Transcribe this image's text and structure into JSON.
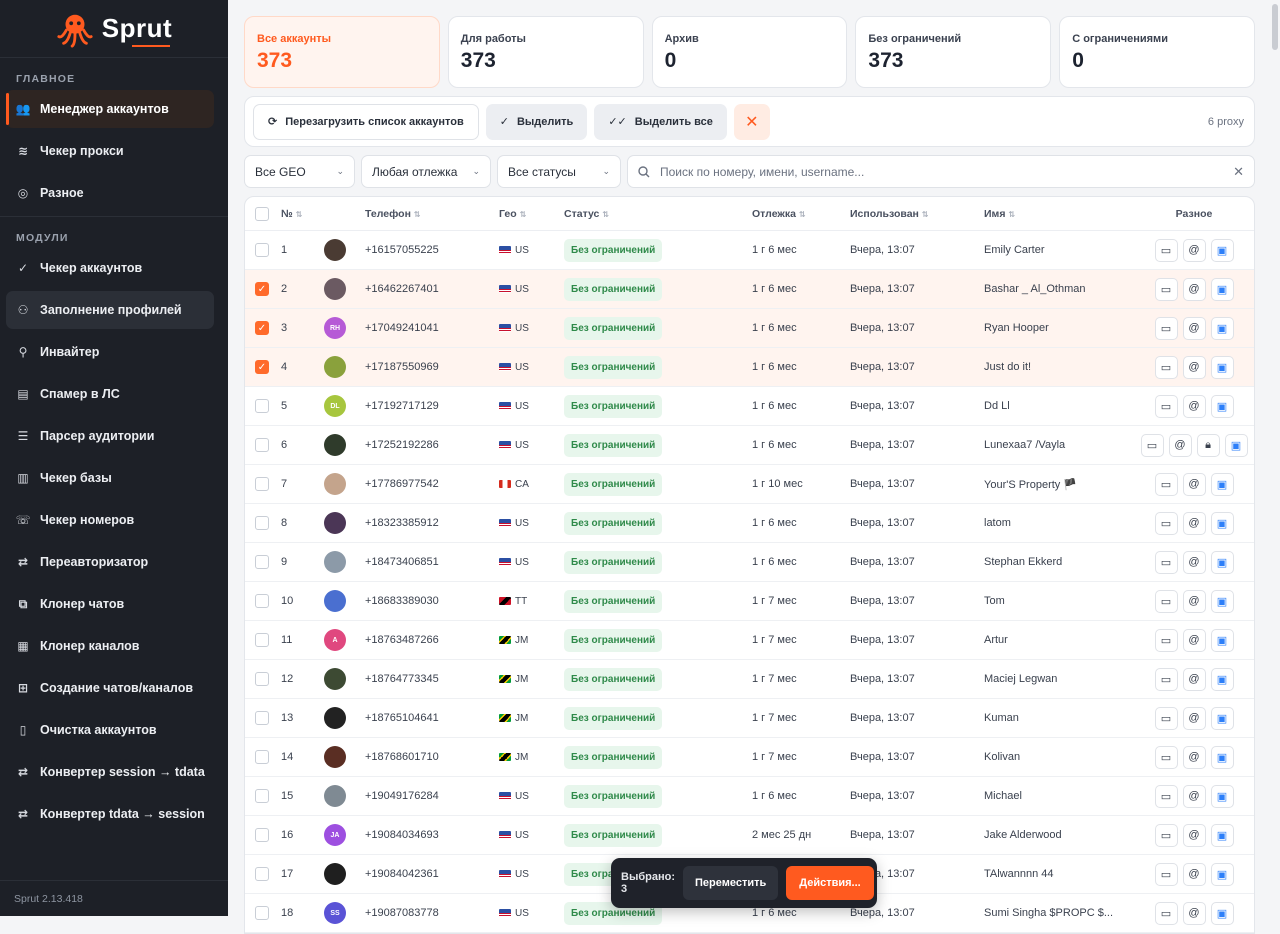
{
  "brand": {
    "name": "Sprut",
    "version": "Sprut 2.13.418",
    "accent": "#ff5a1f"
  },
  "sidebar": {
    "section_main": "ГЛАВНОЕ",
    "main_items": [
      {
        "label": "Менеджер аккаунтов",
        "icon": "users-icon"
      },
      {
        "label": "Чекер прокси",
        "icon": "wifi-icon"
      },
      {
        "label": "Разное",
        "icon": "disc-icon"
      }
    ],
    "section_modules": "МОДУЛИ",
    "module_items": [
      {
        "label": "Чекер аккаунтов",
        "icon": "check-line-icon"
      },
      {
        "label": "Заполнение профилей",
        "icon": "user-edit-icon"
      },
      {
        "label": "Инвайтер",
        "icon": "user-plus-icon"
      },
      {
        "label": "Спамер в ЛС",
        "icon": "message-icon"
      },
      {
        "label": "Парсер аудитории",
        "icon": "filter-icon"
      },
      {
        "label": "Чекер базы",
        "icon": "doc-check-icon"
      },
      {
        "label": "Чекер номеров",
        "icon": "phone-icon"
      },
      {
        "label": "Переавторизатор",
        "icon": "refresh-icon"
      },
      {
        "label": "Клонер чатов",
        "icon": "copy-icon"
      },
      {
        "label": "Клонер каналов",
        "icon": "channel-icon"
      },
      {
        "label": "Создание чатов/каналов",
        "icon": "chat-plus-icon"
      },
      {
        "label": "Очистка аккаунтов",
        "icon": "trash-icon"
      },
      {
        "label": "Конвертер session → tdata",
        "icon": "swap-icon"
      },
      {
        "label": "Конвертер tdata → session",
        "icon": "swap-icon"
      }
    ]
  },
  "stats": [
    {
      "label": "Все аккаунты",
      "value": "373"
    },
    {
      "label": "Для работы",
      "value": "373"
    },
    {
      "label": "Архив",
      "value": "0"
    },
    {
      "label": "Без ограничений",
      "value": "373"
    },
    {
      "label": "С ограничениями",
      "value": "0"
    }
  ],
  "toolbar": {
    "reload": "Перезагрузить список аккаунтов",
    "select": "Выделить",
    "select_all": "Выделить все",
    "close": "✕",
    "proxy_count": "6 proxy"
  },
  "filters": {
    "geo": "Все GEO",
    "age": "Любая отлежка",
    "status": "Все статусы",
    "search_placeholder": "Поиск по номеру, имени, username..."
  },
  "table": {
    "headers": {
      "num": "№",
      "phone": "Телефон",
      "geo": "Гео",
      "status": "Статус",
      "age": "Отлежка",
      "used": "Использован",
      "name": "Имя",
      "misc": "Разное"
    },
    "rows": [
      {
        "num": "1",
        "phone": "+16157055225",
        "geo": "US",
        "status": "Без ограничений",
        "age": "1 г 6 мес",
        "used": "Вчера, 13:07",
        "name": "Emily Carter",
        "checked": false,
        "avatar": "",
        "avatar_color": "#4a3b33",
        "lock": false
      },
      {
        "num": "2",
        "phone": "+16462267401",
        "geo": "US",
        "status": "Без ограничений",
        "age": "1 г 6 мес",
        "used": "Вчера, 13:07",
        "name": "Bashar _ Al_Othman",
        "checked": true,
        "avatar": "",
        "avatar_color": "#6b5a62",
        "lock": false
      },
      {
        "num": "3",
        "phone": "+17049241041",
        "geo": "US",
        "status": "Без ограничений",
        "age": "1 г 6 мес",
        "used": "Вчера, 13:07",
        "name": "Ryan Hooper",
        "checked": true,
        "avatar": "RH",
        "avatar_color": "#b65ad6",
        "lock": false
      },
      {
        "num": "4",
        "phone": "+17187550969",
        "geo": "US",
        "status": "Без ограничений",
        "age": "1 г 6 мес",
        "used": "Вчера, 13:07",
        "name": "Just do it!",
        "checked": true,
        "avatar": "",
        "avatar_color": "#8aa13c",
        "lock": false
      },
      {
        "num": "5",
        "phone": "+17192717129",
        "geo": "US",
        "status": "Без ограничений",
        "age": "1 г 6 мес",
        "used": "Вчера, 13:07",
        "name": "Dd Ll",
        "checked": false,
        "avatar": "DL",
        "avatar_color": "#a7c63e",
        "lock": false
      },
      {
        "num": "6",
        "phone": "+17252192286",
        "geo": "US",
        "status": "Без ограничений",
        "age": "1 г 6 мес",
        "used": "Вчера, 13:07",
        "name": "Lunexaa7 /Vayla",
        "checked": false,
        "avatar": "",
        "avatar_color": "#2f3b2b",
        "lock": true
      },
      {
        "num": "7",
        "phone": "+17786977542",
        "geo": "CA",
        "status": "Без ограничений",
        "age": "1 г 10 мес",
        "used": "Вчера, 13:07",
        "name": "Your'S Property 🏴",
        "checked": false,
        "avatar": "",
        "avatar_color": "#c4a48c",
        "lock": false
      },
      {
        "num": "8",
        "phone": "+18323385912",
        "geo": "US",
        "status": "Без ограничений",
        "age": "1 г 6 мес",
        "used": "Вчера, 13:07",
        "name": "latom",
        "checked": false,
        "avatar": "",
        "avatar_color": "#4b3656",
        "lock": false
      },
      {
        "num": "9",
        "phone": "+18473406851",
        "geo": "US",
        "status": "Без ограничений",
        "age": "1 г 6 мес",
        "used": "Вчера, 13:07",
        "name": "Stephan Ekkerd",
        "checked": false,
        "avatar": "",
        "avatar_color": "#8c9aa8",
        "lock": false
      },
      {
        "num": "10",
        "phone": "+18683389030",
        "geo": "TT",
        "status": "Без ограничений",
        "age": "1 г 7 мес",
        "used": "Вчера, 13:07",
        "name": "Tom",
        "checked": false,
        "avatar": "",
        "avatar_color": "#4a6fd0",
        "lock": false
      },
      {
        "num": "11",
        "phone": "+18763487266",
        "geo": "JM",
        "status": "Без ограничений",
        "age": "1 г 7 мес",
        "used": "Вчера, 13:07",
        "name": "Artur",
        "checked": false,
        "avatar": "A",
        "avatar_color": "#e0487f",
        "lock": false
      },
      {
        "num": "12",
        "phone": "+18764773345",
        "geo": "JM",
        "status": "Без ограничений",
        "age": "1 г 7 мес",
        "used": "Вчера, 13:07",
        "name": "Maciej Legwan",
        "checked": false,
        "avatar": "",
        "avatar_color": "#3d4a33",
        "lock": false
      },
      {
        "num": "13",
        "phone": "+18765104641",
        "geo": "JM",
        "status": "Без ограничений",
        "age": "1 г 7 мес",
        "used": "Вчера, 13:07",
        "name": "Kuman",
        "checked": false,
        "avatar": "",
        "avatar_color": "#222",
        "lock": false
      },
      {
        "num": "14",
        "phone": "+18768601710",
        "geo": "JM",
        "status": "Без ограничений",
        "age": "1 г 7 мес",
        "used": "Вчера, 13:07",
        "name": "Kolivan",
        "checked": false,
        "avatar": "",
        "avatar_color": "#5a2e23",
        "lock": false
      },
      {
        "num": "15",
        "phone": "+19049176284",
        "geo": "US",
        "status": "Без ограничений",
        "age": "1 г 6 мес",
        "used": "Вчера, 13:07",
        "name": "Michael",
        "checked": false,
        "avatar": "",
        "avatar_color": "#7f8a93",
        "lock": false
      },
      {
        "num": "16",
        "phone": "+19084034693",
        "geo": "US",
        "status": "Без ограничений",
        "age": "2 мес 25 дн",
        "used": "Вчера, 13:07",
        "name": "Jake Alderwood",
        "checked": false,
        "avatar": "JA",
        "avatar_color": "#9d4fe0",
        "lock": false
      },
      {
        "num": "17",
        "phone": "+19084042361",
        "geo": "US",
        "status": "Без ограничений",
        "age": "1 г 6 мес",
        "used": "Вчера, 13:07",
        "name": "TAlwannnn 44",
        "checked": false,
        "avatar": "",
        "avatar_color": "#1f1f1f",
        "lock": false
      },
      {
        "num": "18",
        "phone": "+19087083778",
        "geo": "US",
        "status": "Без ограничений",
        "age": "1 г 6 мес",
        "used": "Вчера, 13:07",
        "name": "Sumi Singha $PROPC $...",
        "checked": false,
        "avatar": "SS",
        "avatar_color": "#5a53d6",
        "lock": false
      }
    ]
  },
  "selection_bar": {
    "count_label": "Выбрано: 3",
    "move": "Переместить",
    "actions": "Действия..."
  }
}
